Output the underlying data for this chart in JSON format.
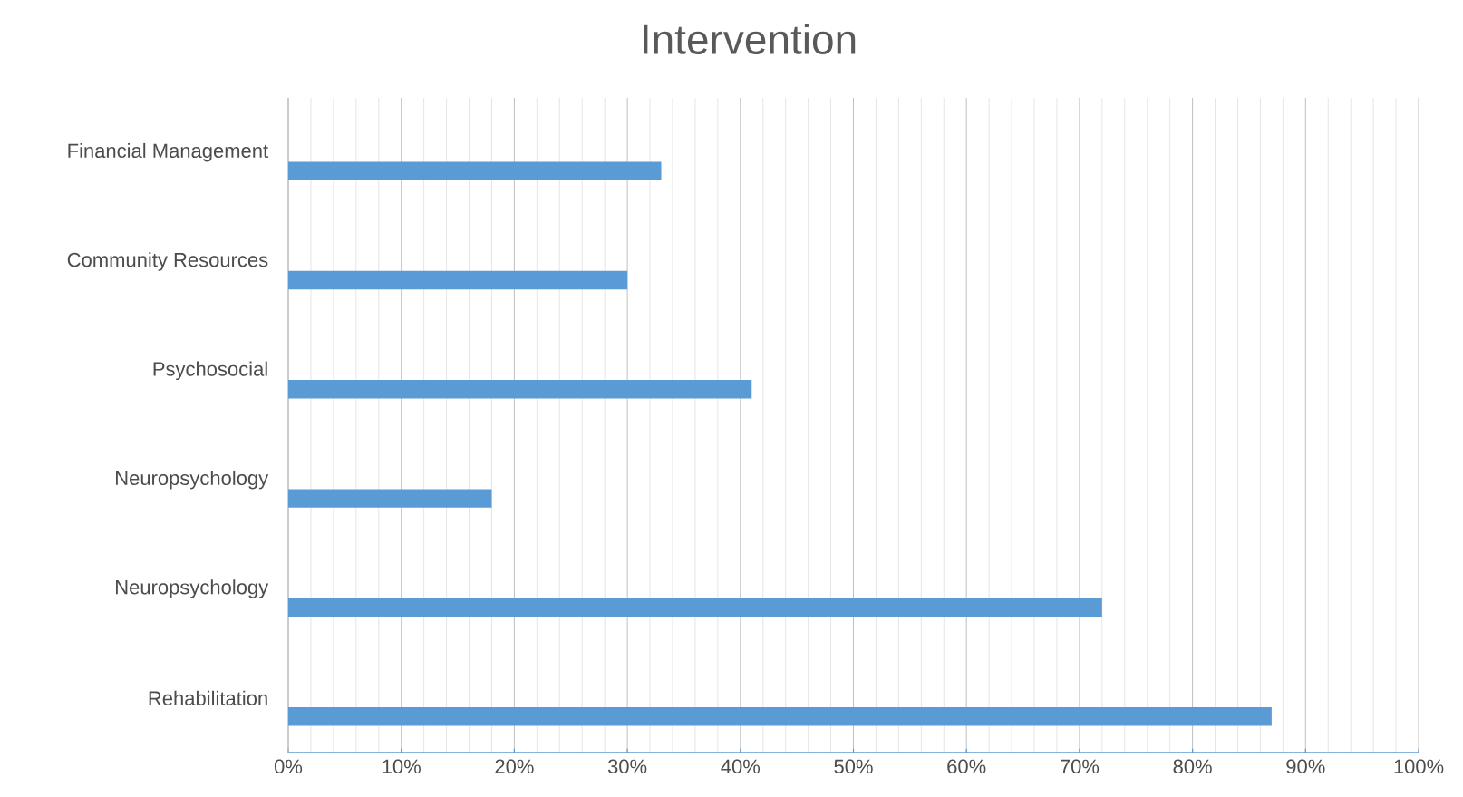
{
  "chart_data": {
    "type": "bar",
    "orientation": "horizontal",
    "title": "Intervention",
    "categories": [
      "Financial Management",
      "Community Resources",
      "Psychosocial",
      "Neuropsychology",
      "Neuropsychology",
      "Rehabilitation"
    ],
    "values": [
      33,
      30,
      41,
      18,
      72,
      87
    ],
    "color": "#5b9bd5",
    "xlim": [
      0,
      100
    ],
    "xticks": [
      {
        "value": 0,
        "label": "0%"
      },
      {
        "value": 10,
        "label": "10%"
      },
      {
        "value": 20,
        "label": "20%"
      },
      {
        "value": 30,
        "label": "30%"
      },
      {
        "value": 40,
        "label": "40%"
      },
      {
        "value": 50,
        "label": "50%"
      },
      {
        "value": 60,
        "label": "60%"
      },
      {
        "value": 70,
        "label": "70%"
      },
      {
        "value": 80,
        "label": "80%"
      },
      {
        "value": 90,
        "label": "90%"
      },
      {
        "value": 100,
        "label": "100%"
      }
    ],
    "grid": "x"
  }
}
